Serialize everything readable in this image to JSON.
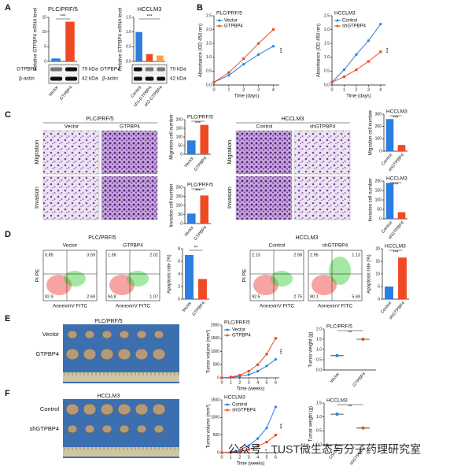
{
  "figure": {
    "panels": [
      "A",
      "B",
      "C",
      "D",
      "E",
      "F"
    ],
    "blots": {
      "labels": [
        "GTPBP4",
        "β-actin"
      ],
      "sizes": [
        "70 kDa",
        "42 kDa"
      ]
    },
    "micrographs": {
      "groups": [
        {
          "title": "PLC/PRF/5",
          "columns": [
            "Vector",
            "GTPBP4"
          ]
        },
        {
          "title": "HCCLM3",
          "columns": [
            "Control",
            "shGTPBP4"
          ]
        }
      ],
      "rows": [
        "Migration",
        "Invasion"
      ]
    },
    "flow": {
      "groups": [
        {
          "title": "PLC/PRF/5",
          "plots": [
            {
              "name": "Vector",
              "quadrants": [
                "0.85",
                "3.59",
                "92.9",
                "2.69"
              ]
            },
            {
              "name": "GTPBP4",
              "quadrants": [
                "1.58",
                "2.02",
                "94.8",
                "1.07"
              ]
            }
          ]
        },
        {
          "title": "HCCLM3",
          "plots": [
            {
              "name": "Control",
              "quadrants": [
                "2.13",
                "2.58",
                "92.5",
                "2.75"
              ]
            },
            {
              "name": "shGTPBP4",
              "quadrants": [
                "2.95",
                "1.13",
                "90.1",
                "5.69"
              ]
            }
          ]
        }
      ],
      "xlabel": "AnnexinV FITC",
      "ylabel": "PI PE"
    },
    "tumors": [
      {
        "title": "PLC/PRF/5",
        "rows": [
          "Vector",
          "GTPBP4"
        ]
      },
      {
        "title": "HCCLM3",
        "rows": [
          "Control",
          "shGTPBP4"
        ]
      }
    ],
    "watermark": "公众号 · TUST微生态与分子药理研究室"
  },
  "chart_data": [
    {
      "type": "bar",
      "title": "PLC/PRF/5",
      "ylabel": "Relative GTPBP4 mRNA level",
      "categories": [
        "Vector",
        "GTPBP4"
      ],
      "values": [
        1,
        13.5
      ],
      "colors": [
        "#2b7de0",
        "#f04a24"
      ],
      "ylim": [
        0,
        15
      ],
      "yticks": [
        0,
        5,
        10,
        15
      ],
      "annotation": "***"
    },
    {
      "type": "bar",
      "title": "HCCLM3",
      "ylabel": "Relative GTPBP4 mRNA level",
      "categories": [
        "Control",
        "sh1-GTPBP4",
        "sh2-GTPBP4"
      ],
      "values": [
        1,
        0.25,
        0.2
      ],
      "colors": [
        "#2b7de0",
        "#f04a24",
        "#f5a04a"
      ],
      "ylim": [
        0,
        1.5
      ],
      "yticks": [
        {
          "value": 0,
          "label": "0.0"
        },
        0.5,
        {
          "value": 1,
          "label": "1.0"
        },
        1.5
      ],
      "annotation": "***"
    },
    {
      "type": "line",
      "title": "PLC/PRF/5",
      "ylabel": "Absorbance (OD 450 nm)",
      "xlabel": "Time (days)",
      "x": [
        0,
        1,
        2,
        3,
        4
      ],
      "series": [
        {
          "name": "Vector",
          "color": "#2b7de0",
          "values": [
            0.1,
            0.35,
            0.75,
            1.1,
            1.4
          ]
        },
        {
          "name": "GTPBP4",
          "color": "#f04a24",
          "values": [
            0.1,
            0.45,
            0.95,
            1.5,
            2.0
          ]
        }
      ],
      "xlim": [
        0,
        4.4
      ],
      "xticks": [
        0,
        1,
        2,
        3,
        4
      ],
      "ylim": [
        0,
        2.5
      ],
      "yticks": [
        {
          "value": 0,
          "label": "0.0"
        },
        0.5,
        {
          "value": 1,
          "label": "1.0"
        },
        1.5,
        {
          "value": 2,
          "label": "2.0"
        },
        2.5
      ],
      "annotation": "***"
    },
    {
      "type": "line",
      "title": "HCCLM3",
      "ylabel": "Absorbance (OD 450 nm)",
      "xlabel": "Time (days)",
      "x": [
        0,
        1,
        2,
        3,
        4
      ],
      "series": [
        {
          "name": "Control",
          "color": "#2b7de0",
          "values": [
            0.1,
            0.55,
            1.1,
            1.6,
            2.2
          ]
        },
        {
          "name": "shGTPBP4",
          "color": "#f04a24",
          "values": [
            0.1,
            0.3,
            0.55,
            0.85,
            1.2
          ]
        }
      ],
      "xlim": [
        0,
        4.4
      ],
      "xticks": [
        0,
        1,
        2,
        3,
        4
      ],
      "ylim": [
        0,
        2.5
      ],
      "yticks": [
        {
          "value": 0,
          "label": "0.0"
        },
        0.5,
        {
          "value": 1,
          "label": "1.0"
        },
        1.5,
        {
          "value": 2,
          "label": "2.0"
        },
        2.5
      ],
      "annotation": "***"
    },
    {
      "type": "bar",
      "title": "PLC/PRF/5",
      "ylabel": "Migration cell number",
      "categories": [
        "Vector",
        "GTPBP4"
      ],
      "values": [
        80,
        170
      ],
      "colors": [
        "#2b7de0",
        "#f04a24"
      ],
      "ylim": [
        0,
        200
      ],
      "yticks": [
        0,
        50,
        100,
        150,
        200
      ],
      "annotation": "***"
    },
    {
      "type": "bar",
      "title": "PLC/PRF/5",
      "ylabel": "Invasion cell number",
      "categories": [
        "Vector",
        "GTPBP4"
      ],
      "values": [
        55,
        155
      ],
      "colors": [
        "#2b7de0",
        "#f04a24"
      ],
      "ylim": [
        0,
        200
      ],
      "yticks": [
        0,
        50,
        100,
        150,
        200
      ],
      "annotation": "***"
    },
    {
      "type": "bar",
      "title": "HCCLM3",
      "ylabel": "Migration cell number",
      "categories": [
        "Control",
        "shGTPBP4"
      ],
      "values": [
        260,
        50
      ],
      "colors": [
        "#2b7de0",
        "#f04a24"
      ],
      "ylim": [
        0,
        300
      ],
      "yticks": [
        0,
        100,
        200,
        300
      ],
      "annotation": "***"
    },
    {
      "type": "bar",
      "title": "HCCLM3",
      "ylabel": "Invasion cell number",
      "categories": [
        "Control",
        "shGTPBP4"
      ],
      "values": [
        190,
        35
      ],
      "colors": [
        "#2b7de0",
        "#f04a24"
      ],
      "ylim": [
        0,
        200
      ],
      "yticks": [
        0,
        50,
        100,
        150,
        200
      ],
      "annotation": "***"
    },
    {
      "type": "bar",
      "ylabel": "Apoptosis rate (%)",
      "categories": [
        "Vector",
        "GTPBP4"
      ],
      "values": [
        7,
        3.2
      ],
      "colors": [
        "#2b7de0",
        "#f04a24"
      ],
      "ylim": [
        0,
        8
      ],
      "yticks": [
        0,
        2,
        4,
        6,
        8
      ],
      "annotation": "**"
    },
    {
      "type": "bar",
      "title": "HCCLM3",
      "ylabel": "Apoptosis rate (%)",
      "categories": [
        "Control",
        "shGTPBP4"
      ],
      "values": [
        5,
        16.5
      ],
      "colors": [
        "#2b7de0",
        "#f04a24"
      ],
      "ylim": [
        0,
        20
      ],
      "yticks": [
        0,
        5,
        10,
        15,
        20
      ],
      "annotation": "***"
    },
    {
      "type": "line",
      "title": "PLC/PRF/5",
      "ylabel": "Tumor volume (mm³)",
      "xlabel": "Time (weeks)",
      "x": [
        0,
        1,
        2,
        3,
        4,
        5,
        6
      ],
      "series": [
        {
          "name": "Vector",
          "color": "#2b7de0",
          "values": [
            0,
            20,
            60,
            120,
            250,
            450,
            700
          ]
        },
        {
          "name": "GTPBP4",
          "color": "#f04a24",
          "values": [
            0,
            30,
            100,
            250,
            500,
            900,
            1500
          ]
        }
      ],
      "xlim": [
        0,
        6.4
      ],
      "xticks": [
        0,
        1,
        2,
        3,
        4,
        5,
        6
      ],
      "ylim": [
        0,
        2000
      ],
      "yticks": [
        0,
        500,
        1000,
        1500,
        2000
      ],
      "annotation": "***"
    },
    {
      "type": "dot",
      "title": "PLC/PRF/5",
      "ylabel": "Tumor weight (g)",
      "categories": [
        "Vector",
        "GTPBP4"
      ],
      "values": [
        0.7,
        1.5
      ],
      "colors": [
        "#2b7de0",
        "#f04a24"
      ],
      "ylim": [
        0,
        2
      ],
      "yticks": [
        {
          "value": 0,
          "label": "0.0"
        },
        0.5,
        {
          "value": 1,
          "label": "1.0"
        },
        1.5,
        {
          "value": 2,
          "label": "2.0"
        }
      ],
      "annotation": "**"
    },
    {
      "type": "line",
      "title": "HCCLM3",
      "ylabel": "Tumor volume (mm³)",
      "xlabel": "Time (weeks)",
      "x": [
        0,
        1,
        2,
        3,
        4,
        5,
        6
      ],
      "series": [
        {
          "name": "Control",
          "color": "#2b7de0",
          "values": [
            0,
            20,
            80,
            200,
            400,
            700,
            1300
          ]
        },
        {
          "name": "shGTPBP4",
          "color": "#f04a24",
          "values": [
            0,
            10,
            40,
            90,
            180,
            300,
            500
          ]
        }
      ],
      "xlim": [
        0,
        6.4
      ],
      "xticks": [
        0,
        1,
        2,
        3,
        4,
        5,
        6
      ],
      "ylim": [
        0,
        1500
      ],
      "yticks": [
        0,
        500,
        1000,
        1500
      ],
      "annotation": "***"
    },
    {
      "type": "dot",
      "title": "HCCLM3",
      "ylabel": "Tumor weight (g)",
      "categories": [
        "Control",
        "shGTPBP4"
      ],
      "values": [
        1.1,
        0.6
      ],
      "colors": [
        "#2b7de0",
        "#f04a24"
      ],
      "ylim": [
        0,
        1.5
      ],
      "yticks": [
        {
          "value": 0,
          "label": "0.0"
        },
        0.5,
        {
          "value": 1,
          "label": "1.0"
        },
        1.5
      ],
      "annotation": "**"
    }
  ]
}
